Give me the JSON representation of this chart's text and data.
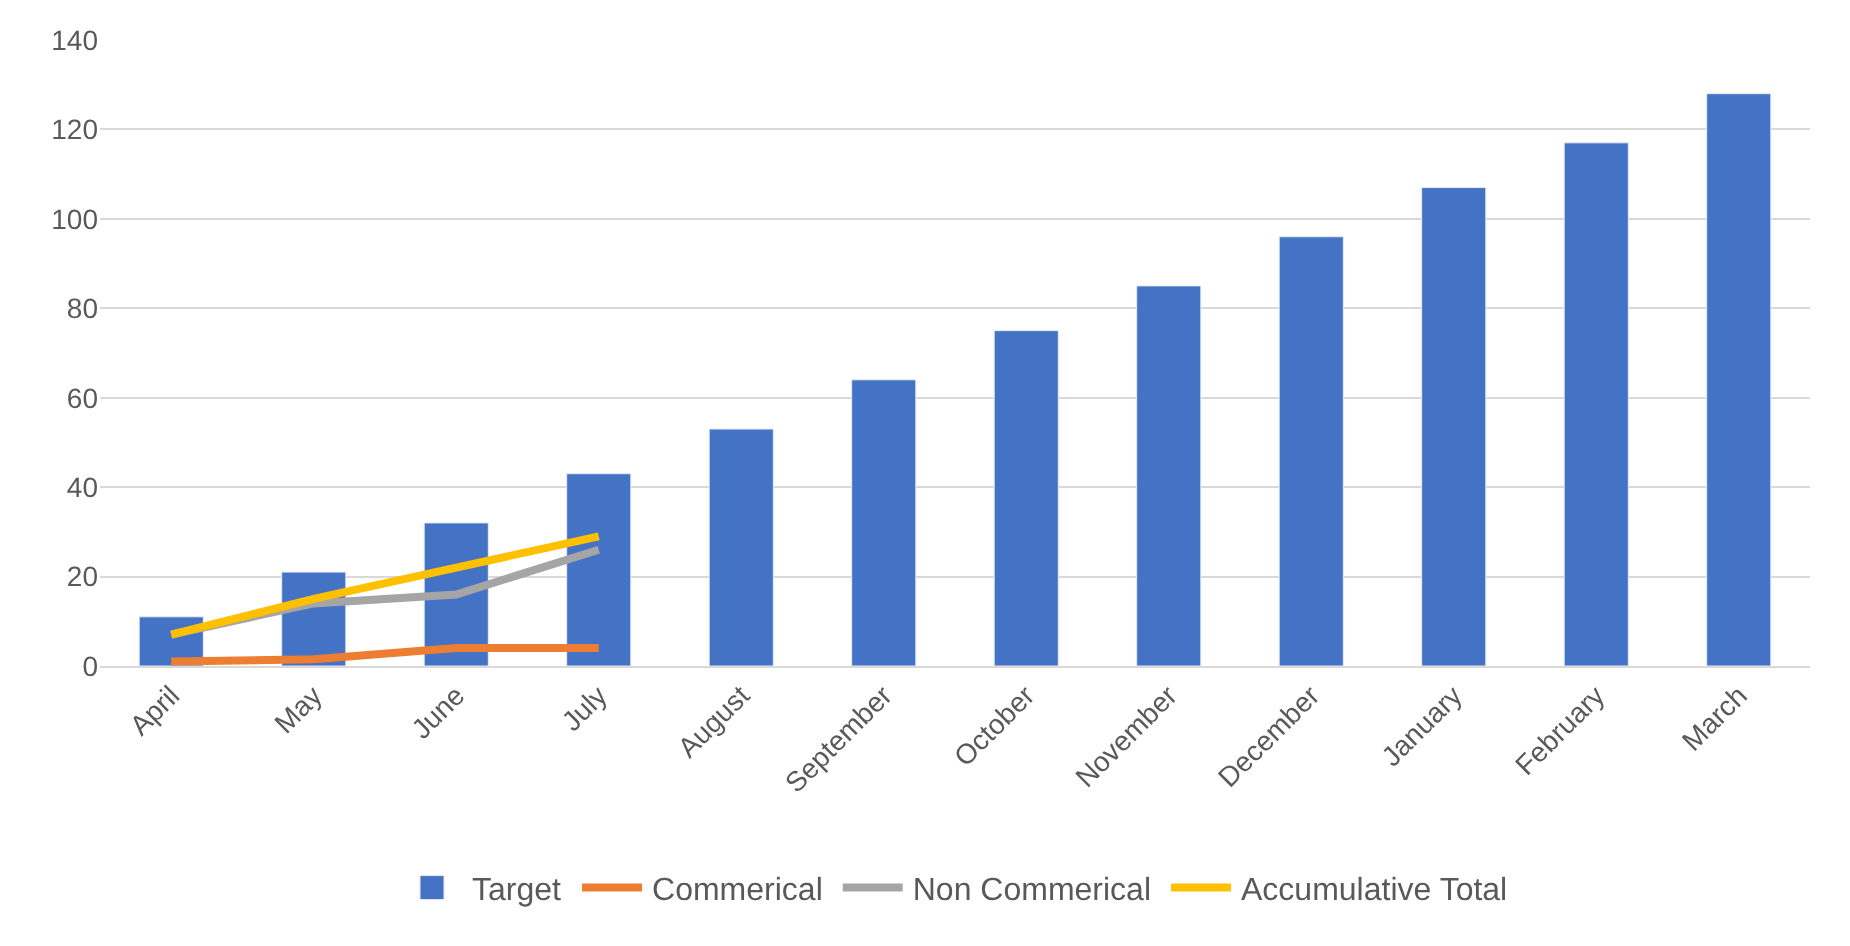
{
  "chart_data": {
    "type": "bar",
    "categories": [
      "April",
      "May",
      "June",
      "July",
      "August",
      "September",
      "October",
      "November",
      "December",
      "January",
      "February",
      "March"
    ],
    "series": [
      {
        "name": "Target",
        "color": "#4472c4",
        "values": [
          11,
          21,
          32,
          43,
          53,
          64,
          75,
          85,
          96,
          107,
          117,
          128
        ]
      },
      {
        "name": "Commerical",
        "type": "line",
        "color": "#ed7d31",
        "values": [
          1,
          1.5,
          4,
          4,
          null,
          null,
          null,
          null,
          null,
          null,
          null,
          null
        ]
      },
      {
        "name": "Non Commerical",
        "type": "line",
        "color": "#a5a5a5",
        "values": [
          7,
          14,
          16,
          26,
          null,
          null,
          null,
          null,
          null,
          null,
          null,
          null
        ]
      },
      {
        "name": "Accumulative Total",
        "type": "line",
        "color": "#ffc000",
        "values": [
          7,
          15,
          22,
          29,
          null,
          null,
          null,
          null,
          null,
          null,
          null,
          null
        ]
      }
    ],
    "ylim": [
      0,
      140
    ],
    "yticks": [
      0,
      20,
      40,
      60,
      80,
      100,
      120,
      140
    ],
    "grid": "y",
    "legend": "bottom",
    "marker": "none",
    "line_style": "solid"
  }
}
